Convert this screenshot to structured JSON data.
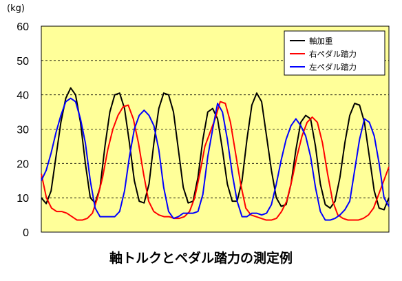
{
  "chart_data": {
    "type": "line",
    "title": "軸トルクとペダル踏力の測定例",
    "ylabel": "(kg)",
    "ylim": [
      0,
      60
    ],
    "yticks": [
      "0",
      "10",
      "20",
      "30",
      "40",
      "50",
      "60"
    ],
    "grid": "horizontal-dashed",
    "legend": "top-right",
    "background": "#ffff99",
    "series": [
      {
        "name": "軸加重",
        "color": "#000000",
        "values": [
          10,
          8.3,
          12,
          22,
          32,
          39,
          42,
          40,
          32,
          20,
          10,
          8.5,
          13,
          25,
          35,
          40,
          40.5,
          36,
          26,
          15,
          9,
          8.5,
          14,
          26,
          36,
          40.5,
          40,
          35,
          24,
          13,
          8.5,
          9,
          16,
          27,
          35,
          36,
          33,
          24,
          14,
          9,
          9,
          15,
          27,
          37,
          40.5,
          38,
          28,
          18,
          10,
          7.5,
          8,
          14,
          24,
          32,
          34,
          33,
          25,
          14,
          8,
          7,
          9,
          16,
          26,
          34,
          37.5,
          37,
          32,
          22,
          12,
          7,
          6.5,
          10
        ]
      },
      {
        "name": "右ペダル踏力",
        "color": "#ff0000",
        "values": [
          17,
          10,
          7,
          6,
          6,
          5.5,
          4.5,
          3.5,
          3.5,
          4,
          5.5,
          10,
          16,
          24,
          30,
          34,
          36.5,
          37,
          33,
          26,
          17,
          9,
          6,
          5,
          4.5,
          4.5,
          4,
          4,
          4.5,
          6,
          10,
          17,
          25,
          29,
          33,
          38,
          37.5,
          32,
          23,
          14,
          7,
          5,
          4.5,
          4,
          3.5,
          3.5,
          4,
          6,
          9,
          15,
          22,
          28,
          32,
          33.5,
          32,
          26,
          17,
          9,
          5,
          4,
          3.5,
          3.5,
          3.5,
          4,
          5,
          7,
          11,
          15,
          19
        ]
      },
      {
        "name": "左ペダル踏力",
        "color": "#0000ff",
        "values": [
          15,
          18,
          23,
          29,
          34,
          38,
          39,
          38,
          33,
          26,
          15,
          7,
          4.5,
          4.5,
          4.5,
          4.5,
          6,
          12,
          22,
          30,
          34,
          35.5,
          34,
          31,
          24,
          13,
          6,
          4,
          4.5,
          5.5,
          5.5,
          5.5,
          6,
          11,
          22,
          30,
          37.5,
          35,
          27,
          17,
          9,
          4.5,
          4.5,
          5.5,
          5.5,
          5,
          5.5,
          8,
          14,
          21,
          27,
          31,
          33,
          31,
          28,
          22,
          13,
          6,
          3.5,
          3.5,
          4,
          5,
          6.5,
          9,
          18,
          27,
          33,
          32,
          28,
          20,
          10,
          7.5
        ]
      }
    ]
  }
}
